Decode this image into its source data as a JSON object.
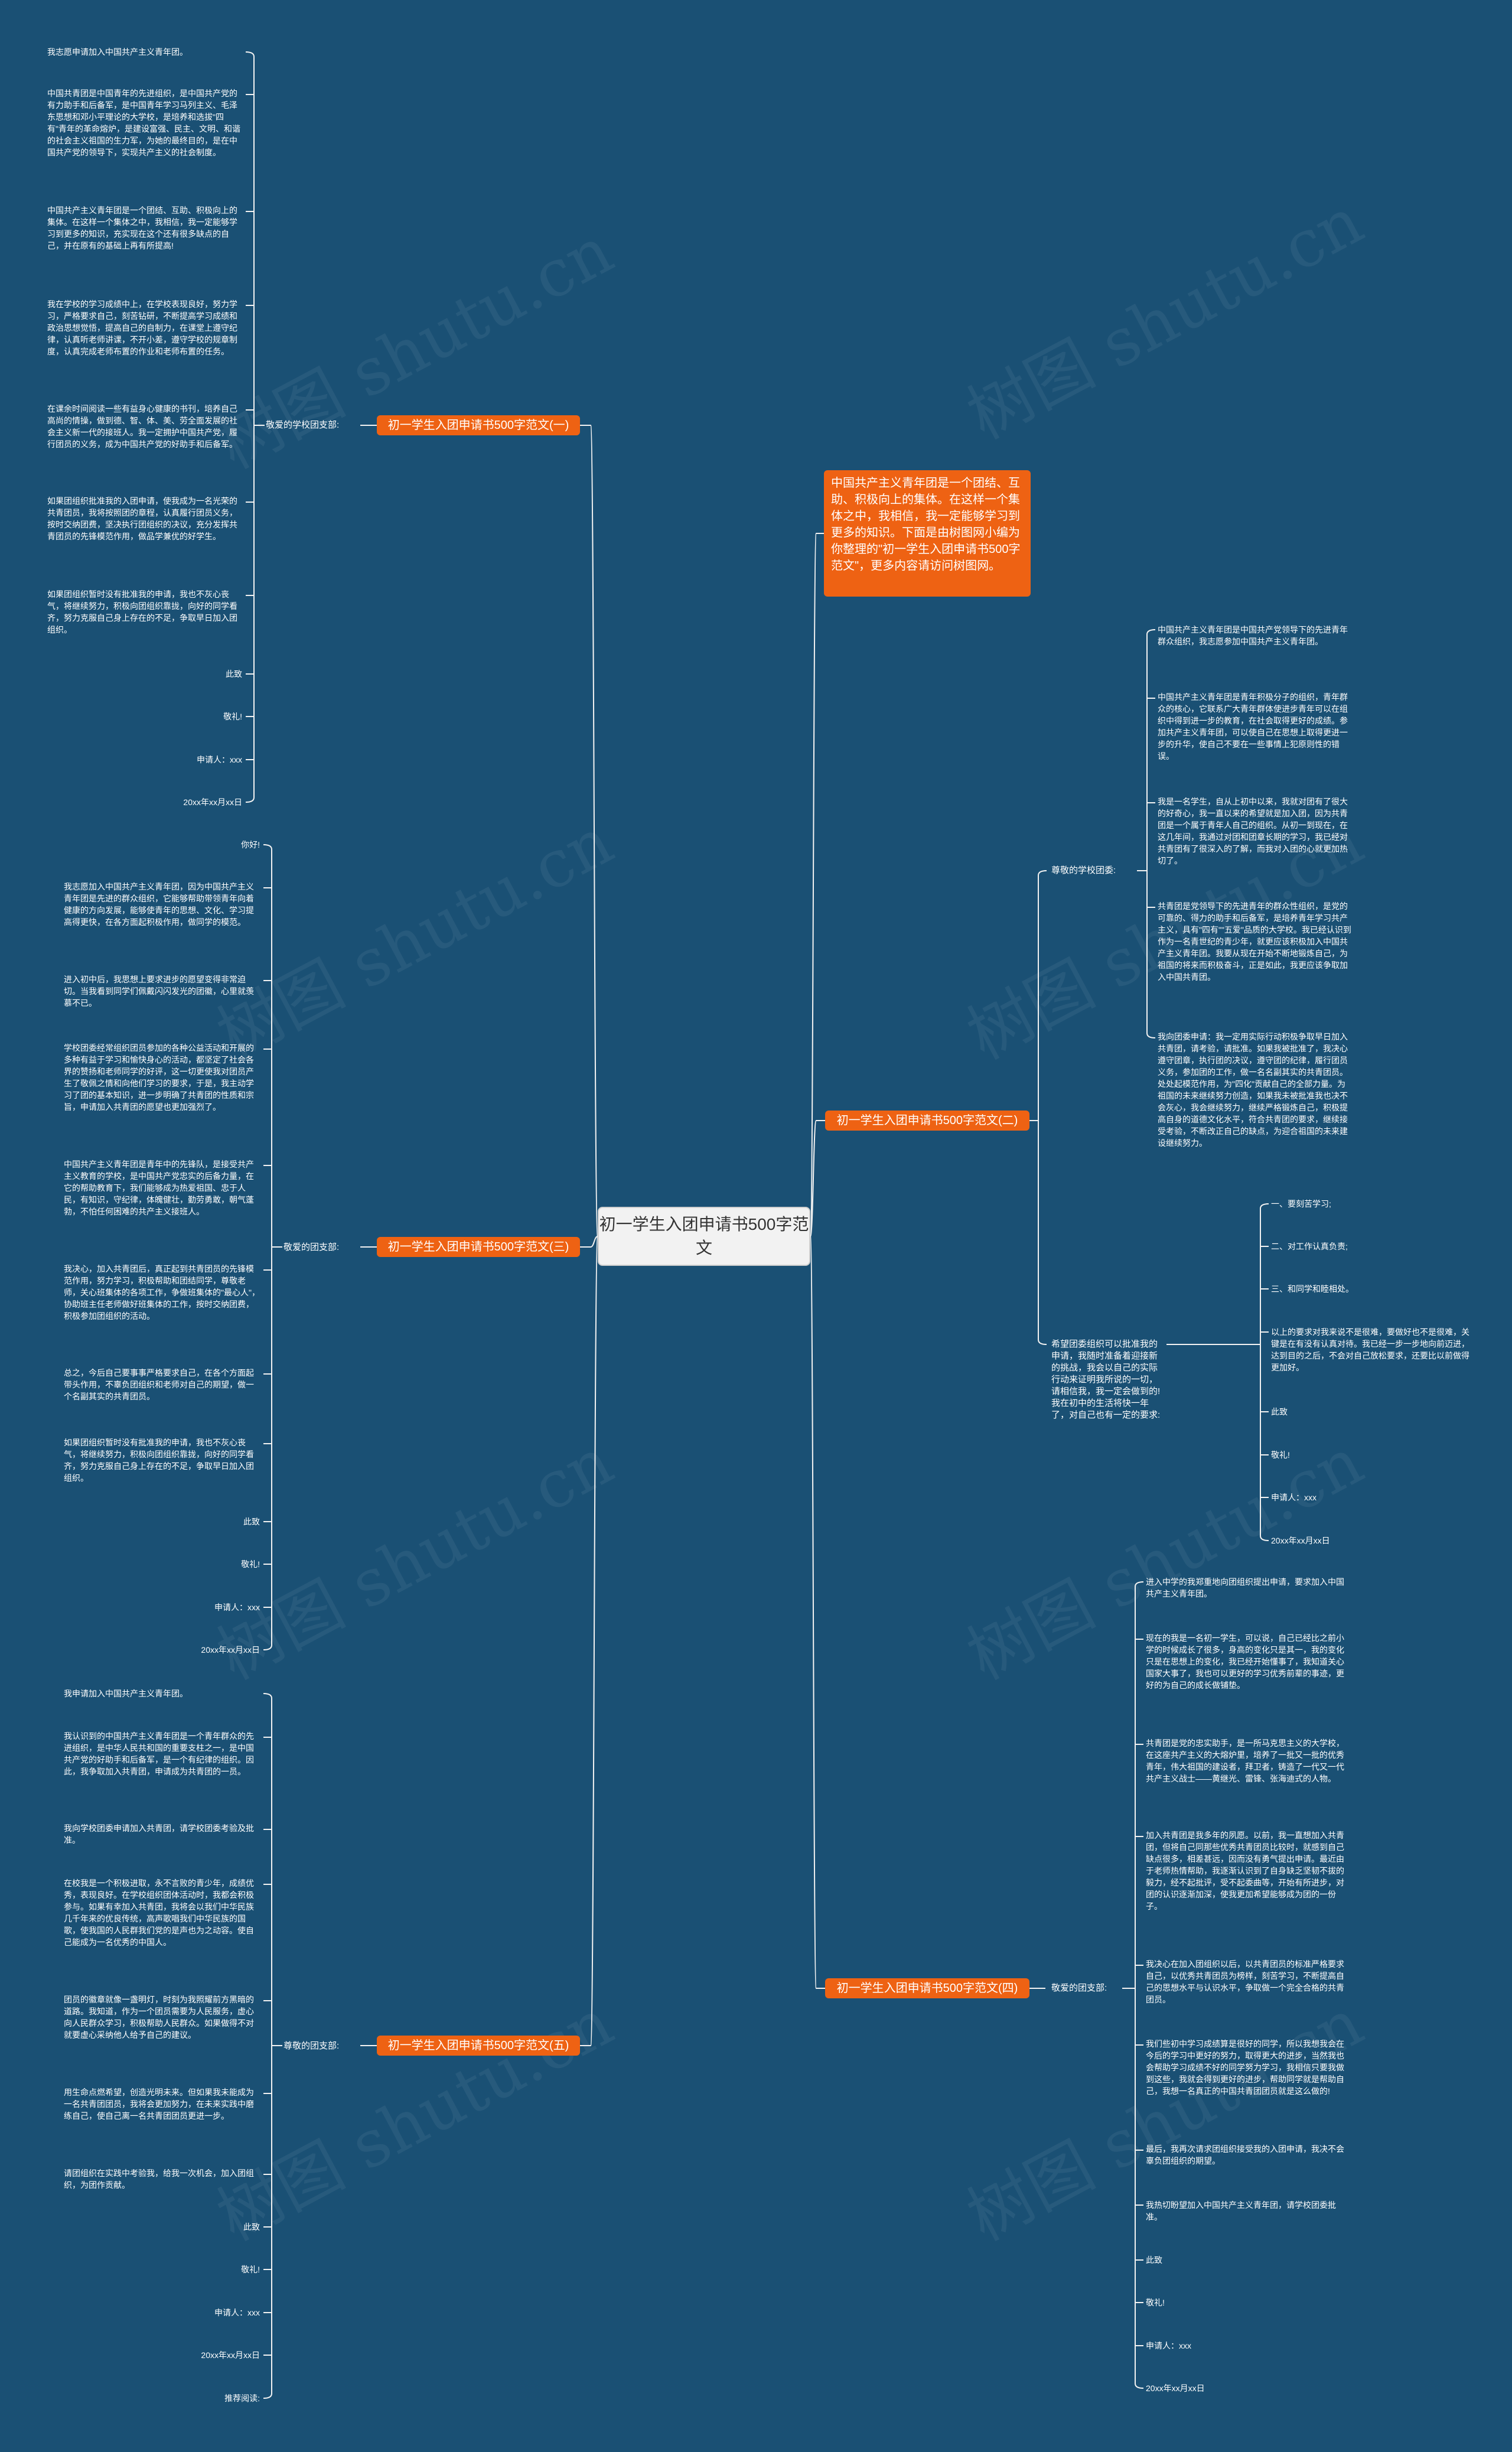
{
  "root": {
    "title": "初一学生入团申请书500字范文"
  },
  "intro": "中国共产主义青年团是一个团结、互助、积极向上的集体。在这样一个集体之中，我相信，我一定能够学习到更多的知识。下面是由树图网小编为你整理的\"初一学生入团申请书500字范文\"，更多内容请访问树图网。",
  "watermark": "树图 shutu.cn",
  "left": [
    {
      "title": "初一学生入团申请书500字范文(一)",
      "label": "敬爱的学校团支部:",
      "items": [
        "我志愿申请加入中国共产主义青年团。",
        "中国共青团是中国青年的先进组织，是中国共产党的有力助手和后备军，是中国青年学习马列主义、毛泽东思想和邓小平理论的大学校，是培养和选拔\"四有\"青年的革命熔炉，是建设富强、民主、文明、和谐的社会主义祖国的生力军，为她的最终目的，是在中国共产党的领导下，实现共产主义的社会制度。",
        "中国共产主义青年团是一个团结、互助、积极向上的集体。在这样一个集体之中，我相信，我一定能够学习到更多的知识，充实现在这个还有很多缺点的自己，并在原有的基础上再有所提高!",
        "我在学校的学习成绩中上，在学校表现良好，努力学习，严格要求自己，刻苦钻研，不断提高学习成绩和政治思想觉悟，提高自己的自制力，在课堂上遵守纪律，认真听老师讲课，不开小差，遵守学校的规章制度，认真完成老师布置的作业和老师布置的任务。",
        "在课余时间阅读一些有益身心健康的书刊，培养自己高尚的情操，做到德、智、体、美、劳全面发展的社会主义新一代的接班人。我一定拥护中国共产党，履行团员的义务，成为中国共产党的好助手和后备军。",
        "如果团组织批准我的入团申请，使我成为一名光荣的共青团员，我将按照团的章程，认真履行团员义务，按时交纳团费，坚决执行团组织的决议，充分发挥共青团员的先锋模范作用，做品学兼优的好学生。",
        "如果团组织暂时没有批准我的申请，我也不灰心丧气，将继续努力，积极向团组织靠拢，向好的同学看齐，努力克服自己身上存在的不足，争取早日加入团组织。",
        "此致",
        "敬礼!",
        "申请人：xxx",
        "20xx年xx月xx日"
      ]
    },
    {
      "title": "初一学生入团申请书500字范文(三)",
      "label": "敬爱的团支部:",
      "items": [
        "你好!",
        "我志愿加入中国共产主义青年团，因为中国共产主义青年团是先进的群众组织，它能够帮助带领青年向着健康的方向发展，能够使青年的思想、文化、学习提高得更快，在各方面起积极作用，做同学的模范。",
        "进入初中后，我思想上要求进步的愿望变得非常迫切。当我看到同学们佩戴闪闪发光的团徽，心里就羡慕不已。",
        "学校团委经常组织团员参加的各种公益活动和开展的多种有益于学习和愉快身心的活动，都坚定了社会各界的赞扬和老师同学的好评，这一切更使我对团员产生了敬佩之情和向他们学习的要求，于是，我主动学习了团的基本知识，进一步明确了共青团的性质和宗旨，申请加入共青团的愿望也更加强烈了。",
        "中国共产主义青年团是青年中的先锋队，是接受共产主义教育的学校，是中国共产党忠实的后备力量，在它的帮助教育下，我们能够成为热爱祖国、忠于人民，有知识，守纪律，体魄健壮，勤劳勇敢，朝气蓬勃，不怕任何困难的共产主义接班人。",
        "我决心，加入共青团后，真正起到共青团员的先锋模范作用，努力学习，积极帮助和团结同学，尊敬老师，关心班集体的各项工作，争做班集体的\"最心人\"，协助班主任老师做好班集体的工作，按时交纳团费，积极参加团组织的活动。",
        "总之，今后自己要事事严格要求自己，在各个方面起带头作用，不辜负团组织和老师对自己的期望，做一个名副其实的共青团员。",
        "如果团组织暂时没有批准我的申请，我也不灰心丧气，将继续努力，积极向团组织靠拢，向好的同学看齐，努力克服自己身上存在的不足，争取早日加入团组织。",
        "此致",
        "敬礼!",
        "申请人：xxx",
        "20xx年xx月xx日"
      ]
    },
    {
      "title": "初一学生入团申请书500字范文(五)",
      "label": "尊敬的团支部:",
      "items": [
        "我申请加入中国共产主义青年团。",
        "我认识到的中国共产主义青年团是一个青年群众的先进组织，是中华人民共和国的重要支柱之一，是中国共产党的好助手和后备军，是一个有纪律的组织。因此，我争取加入共青团，申请成为共青团的一员。",
        "我向学校团委申请加入共青团，请学校团委考验及批准。",
        "在校我是一个积极进取，永不言败的青少年，成绩优秀，表现良好。在学校组织团体活动时，我都会积极参与。如果有幸加入共青团，我将会以我们中华民族几千年来的优良传统，高声歌唱我们中华民族的国歌，使我国的人民群我们党的是声也为之动容。使自己能成为一名优秀的中国人。",
        "团员的徽章就像一盏明灯，时刻为我照耀前方黑暗的道路。我知道，作为一个团员需要为人民服务，虚心向人民群众学习，积极帮助人民群众。如果做得不对就要虚心采纳他人给予自己的建议。",
        "用生命点燃希望，创造光明未来。但如果我未能成为一名共青团团员，我将会更加努力，在未来实践中磨练自己，使自己离一名共青团团员更进一步。",
        "请团组织在实践中考验我，给我一次机会，加入团组织，为团作贡献。",
        "此致",
        "敬礼!",
        "申请人：xxx",
        "20xx年xx月xx日",
        "推荐阅读:"
      ]
    }
  ],
  "right": [
    {
      "title": "初一学生入团申请书500字范文(二)",
      "subs": [
        {
          "label": "尊敬的学校团委:",
          "items": [
            "中国共产主义青年团是中国共产党领导下的先进青年群众组织，我志愿参加中国共产主义青年团。",
            "中国共产主义青年团是青年积极分子的组织，青年群众的核心，它联系广大青年群体使进步青年可以在组织中得到进一步的教育，在社会取得更好的成绩。参加共产主义青年团，可以使自己在思想上取得更进一步的升华，使自己不要在一些事情上犯原则性的错误。",
            "我是一名学生，自从上初中以来，我就对团有了很大的好奇心，我一直以来的希望就是加入团，因为共青团是一个属于青年人自己的组织。从初一到现在，在这几年间，我通过对团和团章长期的学习，我已经对共青团有了很深入的了解，而我对入团的心就更加热切了。",
            "共青团是党领导下的先进青年的群众性组织，是党的可靠的、得力的助手和后备军，是培养青年学习共产主义，具有\"四有\"\"五爱\"品质的大学校。我已经认识到作为一名青世纪的青少年，就更应该积极加入中国共产主义青年团。我要从现在开始不断地锻炼自己，为祖国的将来而积极奋斗，正是如此，我更应该争取加入中国共青团。",
            "我向团委申请：我一定用实际行动积极争取早日加入共青团，请考验，请批准。如果我被批准了，我决心遵守团章，执行团的决议，遵守团的纪律，履行团员义务，参加团的工作，做一名名副其实的共青团员。处处起模范作用，为\"四化\"贡献自己的全部力量。为祖国的未来继续努力创造，如果我未被批准我也决不会灰心，我会继续努力，继续严格锻炼自己，积极提高自身的道德文化水平，符合共青团的要求，继续接受考验，不断改正自己的缺点，为迎合祖国的未来建设继续努力。"
          ]
        },
        {
          "label": "希望团委组织可以批准我的申请，我随时准备着迎接新的挑战，我会以自己的实际行动来证明我所说的一切，请相信我，我一定会做到的!我在初中的生活将快一年了，对自己也有一定的要求:",
          "items": [
            "一、要刻苦学习;",
            "二、对工作认真负责;",
            "三、和同学和睦相处。",
            "以上的要求对我来说不是很难，要做好也不是很难，关键是在有没有认真对待。我已经一步一步地向前迈进，达到目的之后，不会对自己放松要求，还要比以前做得更加好。",
            "此致",
            "敬礼!",
            "申请人：xxx",
            "20xx年xx月xx日"
          ]
        }
      ]
    },
    {
      "title": "初一学生入团申请书500字范文(四)",
      "subs": [
        {
          "label": "敬爱的团支部:",
          "items": [
            "进入中学的我郑重地向团组织提出申请，要求加入中国共产主义青年团。",
            "现在的我是一名初一学生，可以说，自己已经比之前小学的时候成长了很多，身高的变化只是其一，我的变化只是在思想上的变化，我已经开始懂事了，我知道关心国家大事了，我也可以更好的学习优秀前辈的事迹，更好的为自己的成长做铺垫。",
            "共青团是党的忠实助手，是一所马克思主义的大学校，在这座共产主义的大熔炉里，培养了一批又一批的优秀青年，伟大祖国的建设者，拜卫者，铸造了一代又一代共产主义战士——黄继光、雷锋、张海迪式的人物。",
            "加入共青团是我多年的夙愿。以前，我一直想加入共青团，但将自己同那些优秀共青团员比较时，就感到自己缺点很多，相差甚远，因而没有勇气提出申请。最近由于老师热情帮助，我逐渐认识到了自身缺乏坚韧不拔的毅力，经不起批评，受不起委曲等，开始有所进步，对团的认识逐渐加深，使我更加希望能够成为团的一份子。",
            "我决心在加入团组织以后，以共青团员的标准严格要求自己，以优秀共青团员为榜样，刻苦学习，不断提高自己的思想水平与认识水平，争取做一个完全合格的共青团员。",
            "我们些初中学习成绩算是很好的同学，所以我想我会在今后的学习中更好的努力，取得更大的进步，当然我也会帮助学习成绩不好的同学努力学习，我相信只要我做到这些，我就会得到更好的进步，帮助同学就是帮助自己，我想一名真正的中国共青团团员就是这么做的!",
            "最后，我再次请求团组织接受我的入团申请，我决不会辜负团组织的期望。",
            "我热切盼望加入中国共产主义青年团，请学校团委批准。",
            "此致",
            "敬礼!",
            "申请人：xxx",
            "20xx年xx月xx日"
          ]
        }
      ]
    }
  ],
  "colors": {
    "background": "#1a5074",
    "branch": "#ee6213",
    "line": "#f2f2f2",
    "root": "#f2f2f2"
  }
}
